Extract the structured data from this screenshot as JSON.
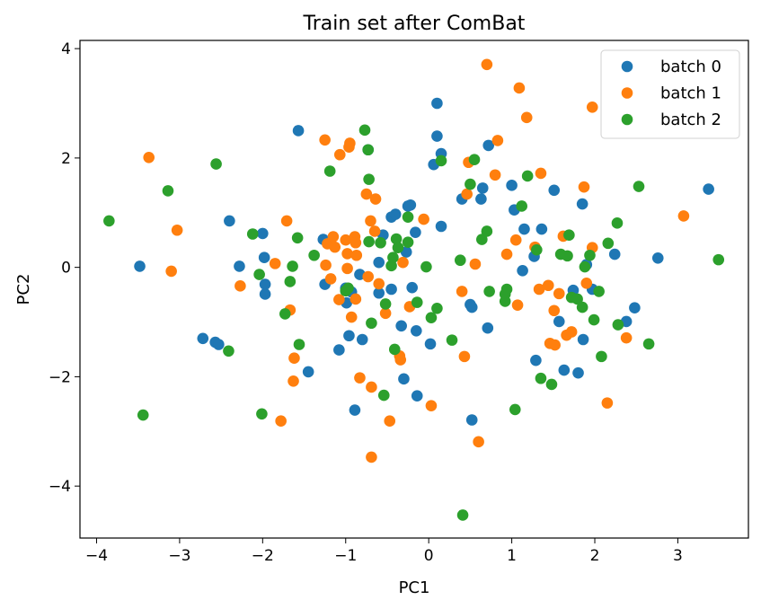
{
  "chart_data": {
    "type": "scatter",
    "title": "Train set after ComBat",
    "xlabel": "PC1",
    "ylabel": "PC2",
    "xlim": [
      -4.2,
      3.85
    ],
    "ylim": [
      -4.95,
      4.15
    ],
    "xticks": [
      -4,
      -3,
      -2,
      -1,
      0,
      1,
      2,
      3
    ],
    "yticks": [
      -4,
      -2,
      0,
      2,
      4
    ],
    "xtick_labels": [
      "−4",
      "−3",
      "−2",
      "−1",
      "0",
      "1",
      "2",
      "3"
    ],
    "ytick_labels": [
      "−4",
      "−2",
      "0",
      "2",
      "4"
    ],
    "grid": false,
    "legend_position": "top-right",
    "series": [
      {
        "name": "batch 0",
        "color": "#1f77b4",
        "points": [
          [
            -3.48,
            0.02
          ],
          [
            -2.72,
            -1.3
          ],
          [
            -2.57,
            -1.37
          ],
          [
            -2.53,
            -1.41
          ],
          [
            -2.4,
            0.85
          ],
          [
            -2.28,
            0.02
          ],
          [
            -2.0,
            0.62
          ],
          [
            -1.98,
            0.18
          ],
          [
            -1.97,
            -0.31
          ],
          [
            -1.97,
            -0.49
          ],
          [
            -1.57,
            2.5
          ],
          [
            -1.45,
            -1.91
          ],
          [
            -1.27,
            0.51
          ],
          [
            -1.25,
            -0.31
          ],
          [
            -1.08,
            -1.51
          ],
          [
            -1.0,
            -0.38
          ],
          [
            -0.99,
            -0.65
          ],
          [
            -0.96,
            -1.25
          ],
          [
            -0.93,
            -0.45
          ],
          [
            -0.89,
            -2.61
          ],
          [
            -0.83,
            -0.13
          ],
          [
            -0.8,
            -1.32
          ],
          [
            -0.73,
            2.15
          ],
          [
            -0.6,
            0.09
          ],
          [
            -0.6,
            -0.47
          ],
          [
            -0.55,
            0.59
          ],
          [
            -0.45,
            -0.4
          ],
          [
            -0.45,
            0.92
          ],
          [
            -0.4,
            0.97
          ],
          [
            -0.33,
            -1.07
          ],
          [
            -0.3,
            -2.04
          ],
          [
            -0.27,
            0.28
          ],
          [
            -0.25,
            1.12
          ],
          [
            -0.22,
            1.14
          ],
          [
            -0.2,
            -0.37
          ],
          [
            -0.16,
            0.64
          ],
          [
            -0.15,
            -1.16
          ],
          [
            -0.14,
            -2.35
          ],
          [
            0.02,
            -1.4
          ],
          [
            0.06,
            1.88
          ],
          [
            0.1,
            3.0
          ],
          [
            0.1,
            2.4
          ],
          [
            0.15,
            0.75
          ],
          [
            0.15,
            2.08
          ],
          [
            0.4,
            1.25
          ],
          [
            0.5,
            -0.68
          ],
          [
            0.52,
            -0.73
          ],
          [
            0.52,
            -2.79
          ],
          [
            0.63,
            1.25
          ],
          [
            0.65,
            1.45
          ],
          [
            0.71,
            -1.11
          ],
          [
            0.72,
            2.23
          ],
          [
            1.0,
            1.5
          ],
          [
            1.03,
            1.05
          ],
          [
            1.13,
            -0.06
          ],
          [
            1.15,
            0.7
          ],
          [
            1.27,
            0.2
          ],
          [
            1.29,
            -1.7
          ],
          [
            1.36,
            0.7
          ],
          [
            1.51,
            1.41
          ],
          [
            1.57,
            -0.99
          ],
          [
            1.63,
            -1.88
          ],
          [
            1.74,
            -0.42
          ],
          [
            1.8,
            -1.93
          ],
          [
            1.85,
            1.16
          ],
          [
            1.86,
            -1.32
          ],
          [
            1.9,
            0.05
          ],
          [
            1.97,
            -0.4
          ],
          [
            2.24,
            0.24
          ],
          [
            2.38,
            -0.99
          ],
          [
            2.48,
            -0.74
          ],
          [
            2.76,
            0.17
          ],
          [
            3.37,
            1.43
          ]
        ]
      },
      {
        "name": "batch 1",
        "color": "#ff7f0e",
        "points": [
          [
            -3.37,
            2.01
          ],
          [
            -3.1,
            -0.07
          ],
          [
            -3.03,
            0.68
          ],
          [
            -2.27,
            -0.34
          ],
          [
            -1.85,
            0.07
          ],
          [
            -1.78,
            -2.81
          ],
          [
            -1.71,
            0.85
          ],
          [
            -1.67,
            -0.78
          ],
          [
            -1.63,
            -2.08
          ],
          [
            -1.62,
            -1.66
          ],
          [
            -1.25,
            2.33
          ],
          [
            -1.24,
            0.04
          ],
          [
            -1.22,
            0.43
          ],
          [
            -1.18,
            -0.21
          ],
          [
            -1.15,
            0.56
          ],
          [
            -1.13,
            0.37
          ],
          [
            -1.08,
            -0.59
          ],
          [
            -1.07,
            2.06
          ],
          [
            -1.0,
            0.5
          ],
          [
            -0.98,
            0.25
          ],
          [
            -0.98,
            -0.02
          ],
          [
            -0.96,
            2.2
          ],
          [
            -0.95,
            2.27
          ],
          [
            -0.93,
            -0.91
          ],
          [
            -0.89,
            0.56
          ],
          [
            -0.88,
            0.45
          ],
          [
            -0.88,
            -0.58
          ],
          [
            -0.87,
            0.22
          ],
          [
            -0.83,
            -2.02
          ],
          [
            -0.75,
            1.34
          ],
          [
            -0.73,
            -0.17
          ],
          [
            -0.7,
            0.85
          ],
          [
            -0.69,
            -3.47
          ],
          [
            -0.69,
            -2.19
          ],
          [
            -0.65,
            0.66
          ],
          [
            -0.64,
            1.25
          ],
          [
            -0.6,
            -0.3
          ],
          [
            -0.52,
            -0.84
          ],
          [
            -0.47,
            -2.81
          ],
          [
            -0.35,
            -1.62
          ],
          [
            -0.34,
            -1.69
          ],
          [
            -0.31,
            0.09
          ],
          [
            -0.23,
            -0.72
          ],
          [
            -0.06,
            0.88
          ],
          [
            0.03,
            -2.53
          ],
          [
            0.4,
            -0.44
          ],
          [
            0.43,
            -1.63
          ],
          [
            0.46,
            1.34
          ],
          [
            0.48,
            1.92
          ],
          [
            0.56,
            0.06
          ],
          [
            0.6,
            -3.19
          ],
          [
            0.7,
            3.71
          ],
          [
            0.8,
            1.69
          ],
          [
            0.83,
            2.32
          ],
          [
            0.94,
            0.24
          ],
          [
            1.05,
            0.5
          ],
          [
            1.07,
            -0.69
          ],
          [
            1.09,
            3.28
          ],
          [
            1.18,
            2.74
          ],
          [
            1.28,
            0.37
          ],
          [
            1.33,
            -0.4
          ],
          [
            1.35,
            1.72
          ],
          [
            1.44,
            -0.33
          ],
          [
            1.46,
            -1.39
          ],
          [
            1.51,
            -0.79
          ],
          [
            1.52,
            -1.42
          ],
          [
            1.57,
            -0.48
          ],
          [
            1.62,
            0.57
          ],
          [
            1.66,
            -1.24
          ],
          [
            1.72,
            -1.18
          ],
          [
            1.87,
            1.47
          ],
          [
            1.9,
            -0.29
          ],
          [
            1.97,
            0.36
          ],
          [
            1.97,
            2.93
          ],
          [
            2.15,
            -2.48
          ],
          [
            2.38,
            -1.29
          ],
          [
            3.07,
            0.94
          ]
        ]
      },
      {
        "name": "batch 2",
        "color": "#2ca02c",
        "points": [
          [
            -3.85,
            0.85
          ],
          [
            -3.44,
            -2.7
          ],
          [
            -3.14,
            1.4
          ],
          [
            -2.56,
            1.89
          ],
          [
            -2.41,
            -1.53
          ],
          [
            -2.12,
            0.61
          ],
          [
            -2.04,
            -0.13
          ],
          [
            -2.01,
            -2.68
          ],
          [
            -1.73,
            -0.85
          ],
          [
            -1.67,
            -0.26
          ],
          [
            -1.64,
            0.02
          ],
          [
            -1.58,
            0.54
          ],
          [
            -1.56,
            -1.41
          ],
          [
            -1.38,
            0.22
          ],
          [
            -1.19,
            1.76
          ],
          [
            -1.0,
            -0.43
          ],
          [
            -0.97,
            -0.38
          ],
          [
            -0.77,
            2.51
          ],
          [
            -0.73,
            2.15
          ],
          [
            -0.72,
            1.61
          ],
          [
            -0.72,
            0.47
          ],
          [
            -0.69,
            -1.02
          ],
          [
            -0.58,
            0.45
          ],
          [
            -0.54,
            -2.34
          ],
          [
            -0.52,
            -0.67
          ],
          [
            -0.45,
            0.03
          ],
          [
            -0.43,
            0.18
          ],
          [
            -0.41,
            -1.5
          ],
          [
            -0.39,
            0.52
          ],
          [
            -0.37,
            0.36
          ],
          [
            -0.25,
            0.92
          ],
          [
            -0.25,
            0.46
          ],
          [
            -0.14,
            -0.64
          ],
          [
            -0.03,
            0.01
          ],
          [
            0.03,
            -0.92
          ],
          [
            0.1,
            -0.75
          ],
          [
            0.15,
            1.95
          ],
          [
            0.28,
            -1.33
          ],
          [
            0.38,
            0.13
          ],
          [
            0.41,
            -4.53
          ],
          [
            0.5,
            1.52
          ],
          [
            0.55,
            1.97
          ],
          [
            0.64,
            0.51
          ],
          [
            0.7,
            0.66
          ],
          [
            0.73,
            -0.44
          ],
          [
            0.92,
            -0.49
          ],
          [
            0.92,
            -0.62
          ],
          [
            0.94,
            -0.4
          ],
          [
            1.04,
            -2.6
          ],
          [
            1.12,
            1.12
          ],
          [
            1.19,
            1.67
          ],
          [
            1.3,
            0.32
          ],
          [
            1.35,
            -2.03
          ],
          [
            1.48,
            -2.14
          ],
          [
            1.59,
            0.24
          ],
          [
            1.67,
            0.21
          ],
          [
            1.69,
            0.59
          ],
          [
            1.72,
            -0.55
          ],
          [
            1.79,
            -0.58
          ],
          [
            1.85,
            -0.73
          ],
          [
            1.88,
            0.01
          ],
          [
            1.94,
            0.22
          ],
          [
            1.99,
            -0.96
          ],
          [
            2.05,
            -0.44
          ],
          [
            2.08,
            -1.63
          ],
          [
            2.16,
            0.44
          ],
          [
            2.27,
            0.81
          ],
          [
            2.28,
            -1.05
          ],
          [
            2.53,
            1.48
          ],
          [
            2.65,
            -1.4
          ],
          [
            3.49,
            0.14
          ]
        ]
      }
    ]
  }
}
